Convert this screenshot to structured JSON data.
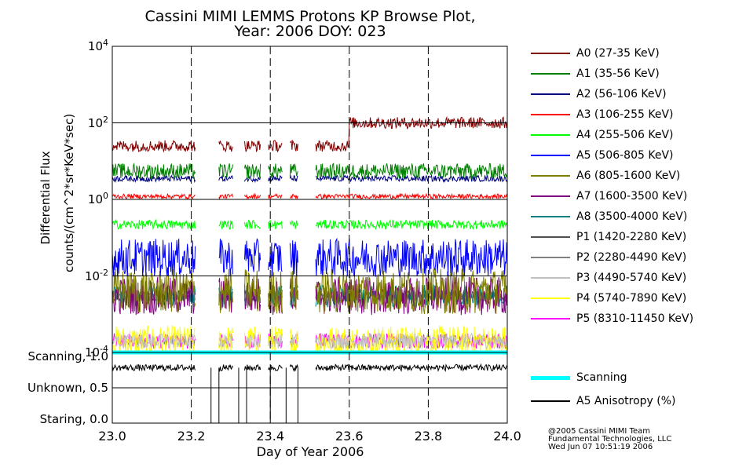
{
  "chart_data": {
    "type": "line",
    "title_line1": "Cassini MIMI LEMMS Protons KP Browse Plot,",
    "title_line2": "Year: 2006 DOY: 023",
    "xlabel": "Day of Year 2006",
    "ylabel_line1": "Differential Flux",
    "ylabel_line2": "counts/(cm^2*sr*KeV*sec)",
    "x_ticks": [
      "23.0",
      "23.2",
      "23.4",
      "23.6",
      "23.8",
      "24.0"
    ],
    "xlim": [
      23.0,
      24.0
    ],
    "ylim_log10": [
      -4,
      4
    ],
    "y_ticks": [
      {
        "base": "10",
        "exp": "4",
        "value": 4
      },
      {
        "base": "10",
        "exp": "2",
        "value": 2
      },
      {
        "base": "10",
        "exp": "0",
        "value": 0
      },
      {
        "base": "10",
        "exp": "-2",
        "value": -2
      },
      {
        "base": "10",
        "exp": "-4",
        "value": -4
      }
    ],
    "gaps": [
      [
        23.21,
        23.27
      ],
      [
        23.305,
        23.335
      ],
      [
        23.375,
        23.395
      ],
      [
        23.43,
        23.45
      ],
      [
        23.47,
        23.515
      ]
    ],
    "series": [
      {
        "name": "A0 (27-35 KeV)",
        "color": "#800000",
        "level_before": 25,
        "level_after": 100,
        "step_at": 23.6,
        "noise": 0.15
      },
      {
        "name": "A1 (35-56 KeV)",
        "color": "#008000",
        "level_before": 5.5,
        "level_after": 6,
        "noise": 0.2
      },
      {
        "name": "A2 (56-106 KeV)",
        "color": "#000080",
        "level_before": 3.5,
        "level_after": 3.5,
        "noise": 0.08
      },
      {
        "name": "A3 (106-255 KeV)",
        "color": "#ff0000",
        "level_before": 1.2,
        "level_after": 1.2,
        "noise": 0.06
      },
      {
        "name": "A4 (255-506 KeV)",
        "color": "#00ff00",
        "level_before": 0.22,
        "level_after": 0.22,
        "noise": 0.12
      },
      {
        "name": "A5 (506-805 KeV)",
        "color": "#0000ff",
        "level_before": 0.03,
        "level_after": 0.03,
        "noise": 0.5
      },
      {
        "name": "A6 (805-1600 KeV)",
        "color": "#808000",
        "level_before": 0.004,
        "level_after": 0.004,
        "noise": 0.6
      },
      {
        "name": "A7 (1600-3500 KeV)",
        "color": "#800080",
        "level_before": 0.003,
        "level_after": 0.003,
        "noise": 0.5
      },
      {
        "name": "A8 (3500-4000 KeV)",
        "color": "#008080",
        "level_before": 0.003,
        "level_after": 0.003,
        "noise": 0.3
      },
      {
        "name": "P1 (1420-2280 KeV)",
        "color": "#505050",
        "level_before": 0.003,
        "level_after": 0.003,
        "noise": 0.15
      },
      {
        "name": "P2 (2280-4490 KeV)",
        "color": "#808080",
        "level_before": 0.003,
        "level_after": 0.003,
        "noise": 0.15
      },
      {
        "name": "P3 (4490-5740 KeV)",
        "color": "#c0c0c0",
        "level_before": 0.0002,
        "level_after": 0.0002,
        "noise": 0.2
      },
      {
        "name": "P4 (5740-7890 KeV)",
        "color": "#ffff00",
        "level_before": 0.0002,
        "level_after": 0.0002,
        "noise": 0.4
      },
      {
        "name": "P5 (8310-11450 KeV)",
        "color": "#ff00ff",
        "level_before": 0.0002,
        "level_after": 0.0002,
        "noise": 0.2
      }
    ],
    "lower_panel": {
      "y_ticks": [
        {
          "label": "Scanning, 1.0",
          "value": 1.0
        },
        {
          "label": "Unknown, 0.5",
          "value": 0.5
        },
        {
          "label": "Staring, 0.0",
          "value": 0.0
        }
      ],
      "ylim": [
        0.0,
        1.0
      ],
      "series": [
        {
          "name": "Scanning",
          "color": "#00ffff",
          "value": 1.0
        },
        {
          "name": "A5 Anisotropy (%)",
          "color": "#000000",
          "mean": 0.82,
          "noise": 0.05,
          "drops": [
            23.25,
            23.27,
            23.32,
            23.34,
            23.4,
            23.44,
            23.47
          ]
        }
      ]
    }
  },
  "footer": {
    "line1": "@2005 Cassini MIMI Team",
    "line2": "Fundamental Technologies, LLC",
    "line3": "Wed Jun 07 10:51:19 2006"
  }
}
